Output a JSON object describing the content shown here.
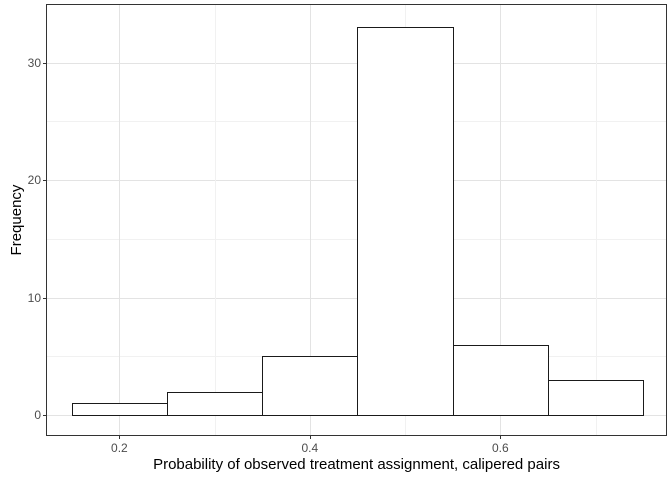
{
  "chart_data": {
    "type": "bar",
    "subtype": "histogram",
    "title": "",
    "xlabel": "Probability of observed treatment assignment, calipered pairs",
    "ylabel": "Frequency",
    "bin_edges": [
      0.15,
      0.25,
      0.35,
      0.45,
      0.55,
      0.65,
      0.75
    ],
    "bin_centers": [
      0.2,
      0.3,
      0.4,
      0.5,
      0.6,
      0.7
    ],
    "values": [
      1,
      2,
      5,
      33,
      6,
      3
    ],
    "xlim": [
      0.124,
      0.774
    ],
    "ylim": [
      -1.7,
      34.9
    ],
    "x_major_ticks": [
      0.2,
      0.4,
      0.6
    ],
    "x_tick_labels": [
      "0.2",
      "0.4",
      "0.6"
    ],
    "x_minor_gridlines": [
      0.3,
      0.5,
      0.7
    ],
    "y_major_ticks": [
      0,
      10,
      20,
      30
    ],
    "y_tick_labels": [
      "0",
      "10",
      "20",
      "30"
    ],
    "y_minor_gridlines": [
      5,
      15,
      25
    ],
    "grid": true,
    "legend": "none",
    "colors": {
      "background": "#ffffff",
      "panel_background": "#ffffff",
      "panel_border": "#333333",
      "grid_major": "#e3e3e3",
      "grid_minor": "#f1f1f1",
      "bar_fill": "#ffffff",
      "bar_stroke": "#1a1a1a",
      "tick_mark": "#333333",
      "tick_label": "#4d4d4d",
      "axis_title": "#000000"
    }
  }
}
